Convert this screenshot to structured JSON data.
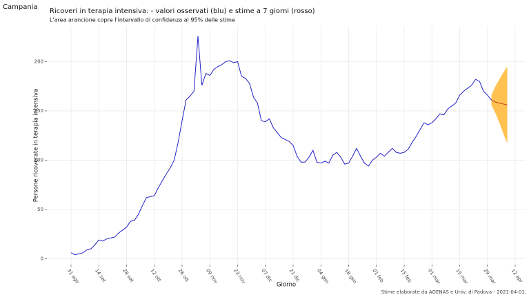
{
  "chart_data": {
    "type": "line",
    "header": "Campania",
    "title": "Ricoveri in terapia intensiva: - valori osservati (blu) e stime a 7 giorni (rosso)",
    "subtitle": "L'area arancione copre l'intervallo di confidenza al 95% delle stime",
    "x_label": "Giorno",
    "y_label": "Persone ricoverate in terapia intensiva",
    "caption": "Stime elaborate da AGENAS e Univ. di Padova - 2021-04-01.",
    "x": [
      "31 ago",
      "02 set",
      "04 set",
      "06 set",
      "08 set",
      "10 set",
      "12 set",
      "14 set",
      "16 set",
      "18 set",
      "20 set",
      "22 set",
      "24 set",
      "26 set",
      "28 set",
      "30 set",
      "02 ott",
      "04 ott",
      "06 ott",
      "08 ott",
      "10 ott",
      "12 ott",
      "14 ott",
      "16 ott",
      "18 ott",
      "20 ott",
      "22 ott",
      "24 ott",
      "26 ott",
      "28 ott",
      "30 ott",
      "01 nov",
      "03 nov",
      "05 nov",
      "07 nov",
      "09 nov",
      "11 nov",
      "13 nov",
      "15 nov",
      "17 nov",
      "19 nov",
      "21 nov",
      "23 nov",
      "25 nov",
      "27 nov",
      "29 nov",
      "01 dic",
      "03 dic",
      "05 dic",
      "07 dic",
      "09 dic",
      "11 dic",
      "13 dic",
      "15 dic",
      "17 dic",
      "19 dic",
      "21 dic",
      "23 dic",
      "25 dic",
      "27 dic",
      "29 dic",
      "31 dic",
      "02 gen",
      "04 gen",
      "06 gen",
      "08 gen",
      "10 gen",
      "12 gen",
      "14 gen",
      "16 gen",
      "18 gen",
      "20 gen",
      "22 gen",
      "24 gen",
      "26 gen",
      "28 gen",
      "30 gen",
      "01 feb",
      "03 feb",
      "05 feb",
      "07 feb",
      "09 feb",
      "11 feb",
      "13 feb",
      "15 feb",
      "17 feb",
      "19 feb",
      "21 feb",
      "23 feb",
      "25 feb",
      "27 feb",
      "01 mar",
      "03 mar",
      "05 mar",
      "07 mar",
      "09 mar",
      "11 mar",
      "13 mar",
      "15 mar",
      "17 mar",
      "19 mar",
      "21 mar",
      "23 mar",
      "25 mar",
      "27 mar",
      "29 mar",
      "31 mar",
      "02 apr",
      "04 apr",
      "06 apr",
      "08 apr",
      "10 apr",
      "12 apr"
    ],
    "series": [
      {
        "color": "#1f1fc8",
        "values": [
          6,
          4,
          5,
          6,
          9,
          10,
          14,
          19,
          18,
          20,
          21,
          22,
          26,
          29,
          32,
          38,
          39,
          45,
          54,
          62,
          63,
          64,
          72,
          79,
          86,
          92,
          100,
          118,
          140,
          161,
          165,
          170,
          226,
          176,
          188,
          186,
          192,
          195,
          197,
          200,
          201,
          199,
          200,
          185,
          183,
          178,
          164,
          158,
          140,
          139,
          142,
          133,
          128,
          123,
          121,
          119,
          115,
          104,
          98,
          98,
          103,
          110,
          98,
          97,
          99,
          97,
          105,
          108,
          103,
          96,
          97,
          104,
          112,
          104,
          97,
          94,
          100,
          103,
          107,
          104,
          108,
          112,
          108,
          107,
          108,
          111,
          118,
          124,
          131,
          138,
          136,
          138,
          142,
          147,
          146,
          152,
          155,
          158,
          166,
          170,
          173,
          176,
          182,
          180,
          170,
          166,
          161,
          null,
          null,
          null,
          null,
          null,
          null
        ]
      },
      {
        "color": "#c0392b",
        "values": [
          null,
          null,
          null,
          null,
          null,
          null,
          null,
          null,
          null,
          null,
          null,
          null,
          null,
          null,
          null,
          null,
          null,
          null,
          null,
          null,
          null,
          null,
          null,
          null,
          null,
          null,
          null,
          null,
          null,
          null,
          null,
          null,
          null,
          null,
          null,
          null,
          null,
          null,
          null,
          null,
          null,
          null,
          null,
          null,
          null,
          null,
          null,
          null,
          null,
          null,
          null,
          null,
          null,
          null,
          null,
          null,
          null,
          null,
          null,
          null,
          null,
          null,
          null,
          null,
          null,
          null,
          null,
          null,
          null,
          null,
          null,
          null,
          null,
          null,
          null,
          null,
          null,
          null,
          null,
          null,
          null,
          null,
          null,
          null,
          null,
          null,
          null,
          null,
          null,
          null,
          null,
          null,
          null,
          null,
          null,
          null,
          null,
          null,
          null,
          null,
          null,
          null,
          null,
          null,
          null,
          null,
          161,
          159,
          158,
          157,
          156,
          null,
          null
        ]
      }
    ],
    "band": {
      "color": "#ffb733",
      "upper": [
        null,
        null,
        null,
        null,
        null,
        null,
        null,
        null,
        null,
        null,
        null,
        null,
        null,
        null,
        null,
        null,
        null,
        null,
        null,
        null,
        null,
        null,
        null,
        null,
        null,
        null,
        null,
        null,
        null,
        null,
        null,
        null,
        null,
        null,
        null,
        null,
        null,
        null,
        null,
        null,
        null,
        null,
        null,
        null,
        null,
        null,
        null,
        null,
        null,
        null,
        null,
        null,
        null,
        null,
        null,
        null,
        null,
        null,
        null,
        null,
        null,
        null,
        null,
        null,
        null,
        null,
        null,
        null,
        null,
        null,
        null,
        null,
        null,
        null,
        null,
        null,
        null,
        null,
        null,
        null,
        null,
        null,
        null,
        null,
        null,
        null,
        null,
        null,
        null,
        null,
        null,
        null,
        null,
        null,
        null,
        null,
        null,
        null,
        null,
        null,
        null,
        null,
        null,
        null,
        null,
        null,
        166,
        175,
        182,
        189,
        195,
        null,
        null
      ],
      "lower": [
        null,
        null,
        null,
        null,
        null,
        null,
        null,
        null,
        null,
        null,
        null,
        null,
        null,
        null,
        null,
        null,
        null,
        null,
        null,
        null,
        null,
        null,
        null,
        null,
        null,
        null,
        null,
        null,
        null,
        null,
        null,
        null,
        null,
        null,
        null,
        null,
        null,
        null,
        null,
        null,
        null,
        null,
        null,
        null,
        null,
        null,
        null,
        null,
        null,
        null,
        null,
        null,
        null,
        null,
        null,
        null,
        null,
        null,
        null,
        null,
        null,
        null,
        null,
        null,
        null,
        null,
        null,
        null,
        null,
        null,
        null,
        null,
        null,
        null,
        null,
        null,
        null,
        null,
        null,
        null,
        null,
        null,
        null,
        null,
        null,
        null,
        null,
        null,
        null,
        null,
        null,
        null,
        null,
        null,
        null,
        null,
        null,
        null,
        null,
        null,
        null,
        null,
        null,
        null,
        null,
        null,
        156,
        148,
        138,
        127,
        117,
        null,
        null
      ]
    },
    "xticks": [
      "31 ago",
      "14 set",
      "28 set",
      "12 ott",
      "26 ott",
      "09 nov",
      "23 nov",
      "07 dic",
      "21 dic",
      "04 gen",
      "18 gen",
      "01 feb",
      "15 feb",
      "01 mar",
      "15 mar",
      "29 mar",
      "12 apr"
    ],
    "ylim": [
      -6,
      236
    ],
    "yticks": [
      0,
      50,
      100,
      150,
      200
    ],
    "grid": true
  }
}
